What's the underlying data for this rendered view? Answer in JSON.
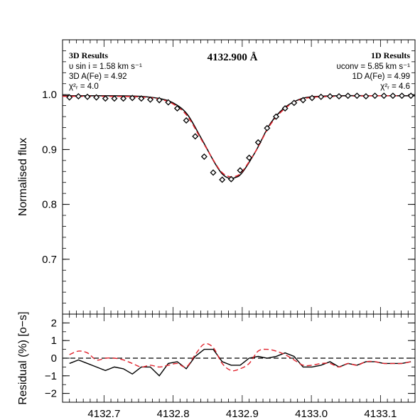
{
  "chart_data": [
    {
      "type": "line+scatter",
      "panel": "main",
      "title": "4132.900 Å",
      "ylabel": "Normalised flux",
      "xlim": [
        4132.64,
        4133.15
      ],
      "ylim": [
        0.6,
        1.1
      ],
      "y_ticks": [
        0.7,
        0.8,
        0.9,
        1.0
      ],
      "y_tick_labels": [
        "0.7",
        "0.8",
        "0.9",
        "1.0"
      ],
      "left_annotation": {
        "heading": "3D Results",
        "vsini": "υ sin i = 1.58 km s⁻¹",
        "abundance": "3D A(Fe) = 4.92",
        "chi2": "χ²ᵣ = 4.0"
      },
      "right_annotation": {
        "heading": "1D Results",
        "vconv": "υconv = 5.85 km s⁻¹",
        "abundance": "1D A(Fe) = 4.99",
        "chi2": "χ²ᵣ = 4.6"
      },
      "observed": {
        "x": [
          4132.65,
          4132.663,
          4132.676,
          4132.689,
          4132.702,
          4132.715,
          4132.728,
          4132.741,
          4132.754,
          4132.767,
          4132.78,
          4132.793,
          4132.806,
          4132.819,
          4132.832,
          4132.845,
          4132.858,
          4132.871,
          4132.884,
          4132.897,
          4132.91,
          4132.923,
          4132.936,
          4132.949,
          4132.962,
          4132.975,
          4132.988,
          4133.001,
          4133.014,
          4133.027,
          4133.04,
          4133.053,
          4133.066,
          4133.079,
          4133.092,
          4133.105,
          4133.118,
          4133.131,
          4133.144
        ],
        "y": [
          0.995,
          0.997,
          0.996,
          0.995,
          0.993,
          0.993,
          0.993,
          0.994,
          0.993,
          0.991,
          0.99,
          0.986,
          0.975,
          0.953,
          0.924,
          0.887,
          0.858,
          0.845,
          0.846,
          0.862,
          0.885,
          0.913,
          0.939,
          0.96,
          0.975,
          0.985,
          0.99,
          0.994,
          0.996,
          0.997,
          0.997,
          0.998,
          0.998,
          0.997,
          0.998,
          0.998,
          0.998,
          0.998,
          0.998
        ]
      },
      "series": [
        {
          "style": "solid",
          "color": "#000000",
          "x": [
            4132.64,
            4132.7,
            4132.75,
            4132.78,
            4132.8,
            4132.82,
            4132.84,
            4132.86,
            4132.87,
            4132.88,
            4132.89,
            4132.9,
            4132.92,
            4132.94,
            4132.96,
            4132.98,
            4133.0,
            4133.04,
            4133.1,
            4133.15
          ],
          "y": [
            0.998,
            0.998,
            0.997,
            0.993,
            0.985,
            0.965,
            0.922,
            0.876,
            0.857,
            0.848,
            0.849,
            0.858,
            0.898,
            0.946,
            0.975,
            0.99,
            0.996,
            0.998,
            0.998,
            0.998
          ]
        },
        {
          "style": "dashed",
          "color": "#e0202a",
          "x": [
            4132.64,
            4132.7,
            4132.75,
            4132.78,
            4132.8,
            4132.82,
            4132.84,
            4132.86,
            4132.87,
            4132.88,
            4132.89,
            4132.9,
            4132.92,
            4132.94,
            4132.96,
            4132.98,
            4133.0,
            4133.04,
            4133.1,
            4133.15
          ],
          "y": [
            0.997,
            0.997,
            0.996,
            0.992,
            0.983,
            0.962,
            0.92,
            0.877,
            0.859,
            0.851,
            0.851,
            0.86,
            0.898,
            0.944,
            0.973,
            0.989,
            0.995,
            0.997,
            0.998,
            0.998
          ]
        }
      ]
    },
    {
      "type": "line",
      "panel": "residual",
      "ylabel": "Residual (%) [o−s]",
      "xlim": [
        4132.64,
        4133.15
      ],
      "ylim": [
        -2.5,
        2.5
      ],
      "y_ticks": [
        -2,
        -1,
        0,
        1,
        2
      ],
      "y_tick_labels": [
        "−2",
        "−1",
        "0",
        "1",
        "2"
      ],
      "x_ticks": [
        4132.7,
        4132.8,
        4132.9,
        4133.0,
        4133.1
      ],
      "x_tick_labels": [
        "4132.7",
        "4132.8",
        "4132.9",
        "4133.0",
        "4133.1"
      ],
      "zero_line": {
        "y": 0,
        "style": "dashed",
        "color": "#000000"
      },
      "series": [
        {
          "style": "solid",
          "color": "#000000",
          "x": [
            4132.65,
            4132.663,
            4132.676,
            4132.689,
            4132.702,
            4132.715,
            4132.728,
            4132.741,
            4132.754,
            4132.767,
            4132.78,
            4132.793,
            4132.806,
            4132.819,
            4132.832,
            4132.845,
            4132.858,
            4132.871,
            4132.884,
            4132.897,
            4132.91,
            4132.923,
            4132.936,
            4132.949,
            4132.962,
            4132.975,
            4132.988,
            4133.001,
            4133.014,
            4133.027,
            4133.04,
            4133.053,
            4133.066,
            4133.079,
            4133.092,
            4133.105,
            4133.118,
            4133.131,
            4133.144
          ],
          "y": [
            -0.3,
            -0.1,
            -0.3,
            -0.5,
            -0.7,
            -0.5,
            -0.6,
            -0.9,
            -0.5,
            -0.5,
            -1.0,
            -0.3,
            -0.2,
            -0.6,
            0.1,
            0.5,
            0.5,
            -0.2,
            -0.4,
            -0.4,
            0.0,
            0.1,
            0.0,
            0.1,
            0.3,
            0.1,
            -0.5,
            -0.5,
            -0.4,
            -0.2,
            -0.5,
            -0.3,
            -0.4,
            -0.2,
            -0.2,
            -0.3,
            -0.3,
            -0.3,
            -0.2
          ]
        },
        {
          "style": "dashed",
          "color": "#e0202a",
          "x": [
            4132.65,
            4132.663,
            4132.676,
            4132.689,
            4132.702,
            4132.715,
            4132.728,
            4132.741,
            4132.754,
            4132.767,
            4132.78,
            4132.793,
            4132.806,
            4132.819,
            4132.832,
            4132.845,
            4132.858,
            4132.871,
            4132.884,
            4132.897,
            4132.91,
            4132.923,
            4132.936,
            4132.949,
            4132.962,
            4132.975,
            4132.988,
            4133.001,
            4133.014,
            4133.027,
            4133.04,
            4133.053,
            4133.066,
            4133.079,
            4133.092,
            4133.105,
            4133.118,
            4133.131,
            4133.144
          ],
          "y": [
            0.2,
            0.4,
            0.3,
            -0.1,
            0.0,
            0.0,
            -0.1,
            -0.3,
            -0.5,
            -0.4,
            -0.5,
            -0.4,
            -0.3,
            -0.5,
            0.2,
            0.8,
            0.6,
            -0.3,
            -0.7,
            -0.6,
            -0.3,
            0.4,
            0.5,
            0.4,
            0.2,
            -0.1,
            -0.4,
            -0.4,
            -0.3,
            -0.3,
            -0.5,
            -0.3,
            -0.4,
            -0.2,
            -0.2,
            -0.3,
            -0.3,
            -0.3,
            -0.2
          ]
        }
      ]
    }
  ]
}
